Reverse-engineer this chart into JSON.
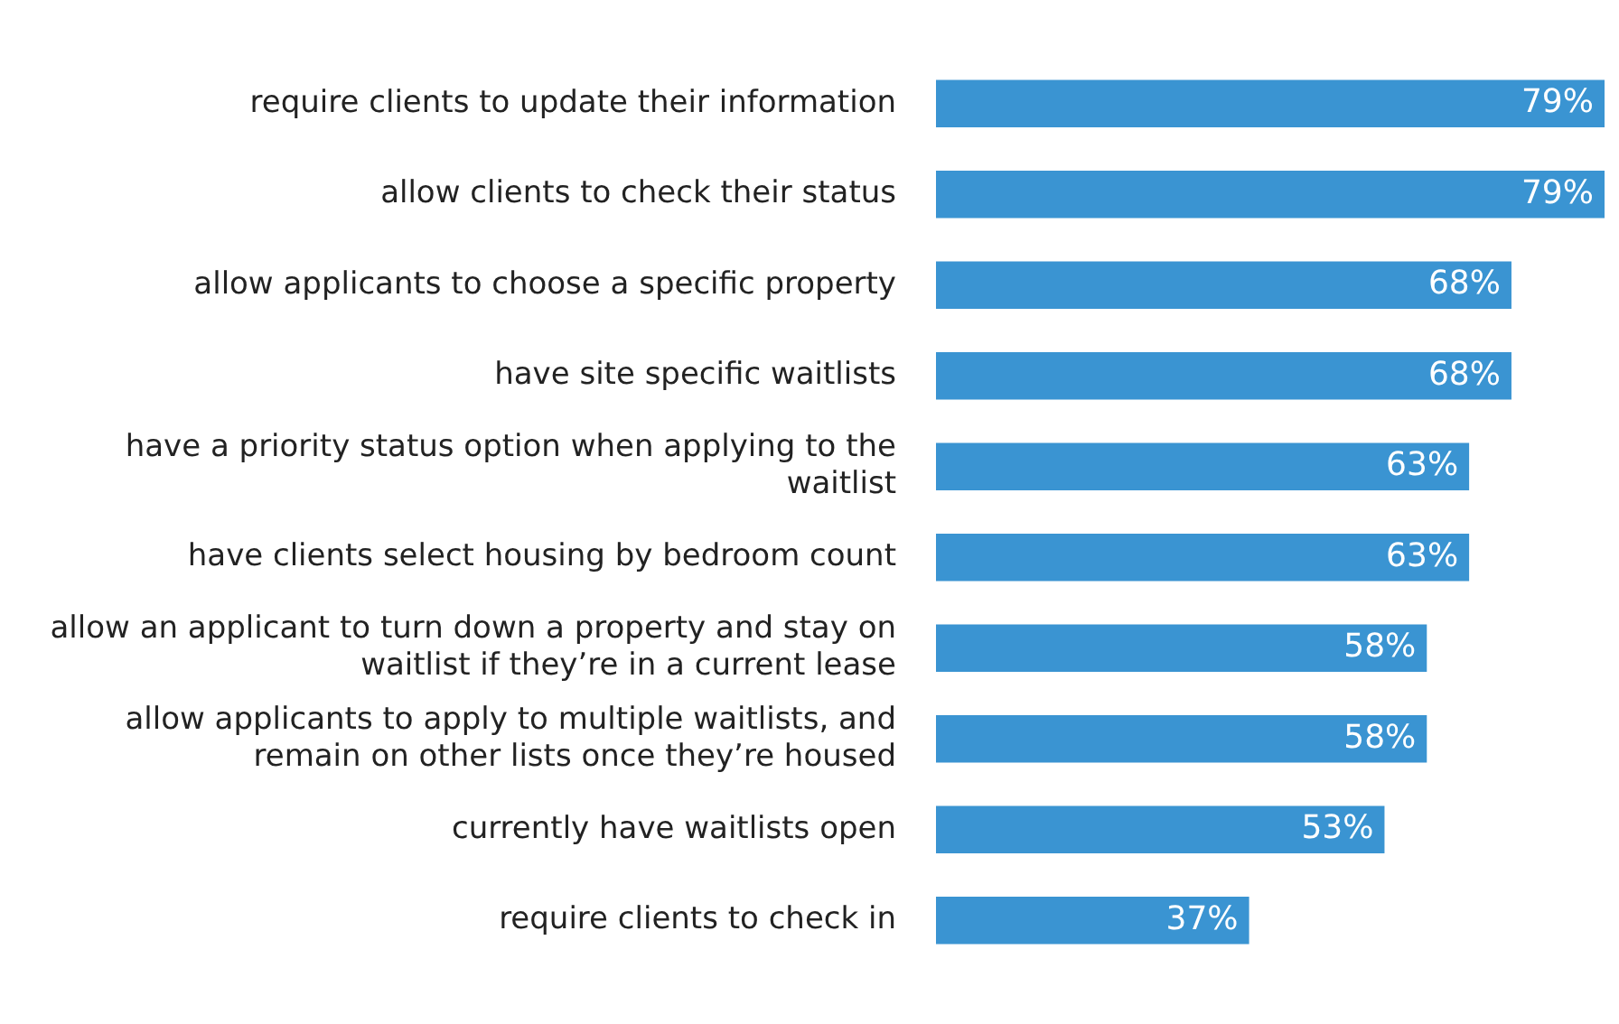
{
  "chart_data": {
    "type": "bar",
    "orientation": "horizontal",
    "categories": [
      "require clients to update their information",
      "allow clients to check their status",
      "allow applicants to choose a specific property",
      "have site specific waitlists",
      "have a priority status option when applying to the waitlist",
      "have clients select housing by bedroom count",
      "allow an applicant to turn down a property and stay on waitlist if they’re in a current lease",
      "allow applicants to apply to multiple waitlists, and remain on other lists once they’re housed",
      "currently have waitlists open",
      "require clients to check in"
    ],
    "values": [
      79,
      79,
      68,
      68,
      63,
      63,
      58,
      58,
      53,
      37
    ],
    "value_labels": [
      "79%",
      "79%",
      "68%",
      "68%",
      "63%",
      "63%",
      "58%",
      "58%",
      "53%",
      "37%"
    ],
    "color": "#3a94d2",
    "legend": false
  }
}
